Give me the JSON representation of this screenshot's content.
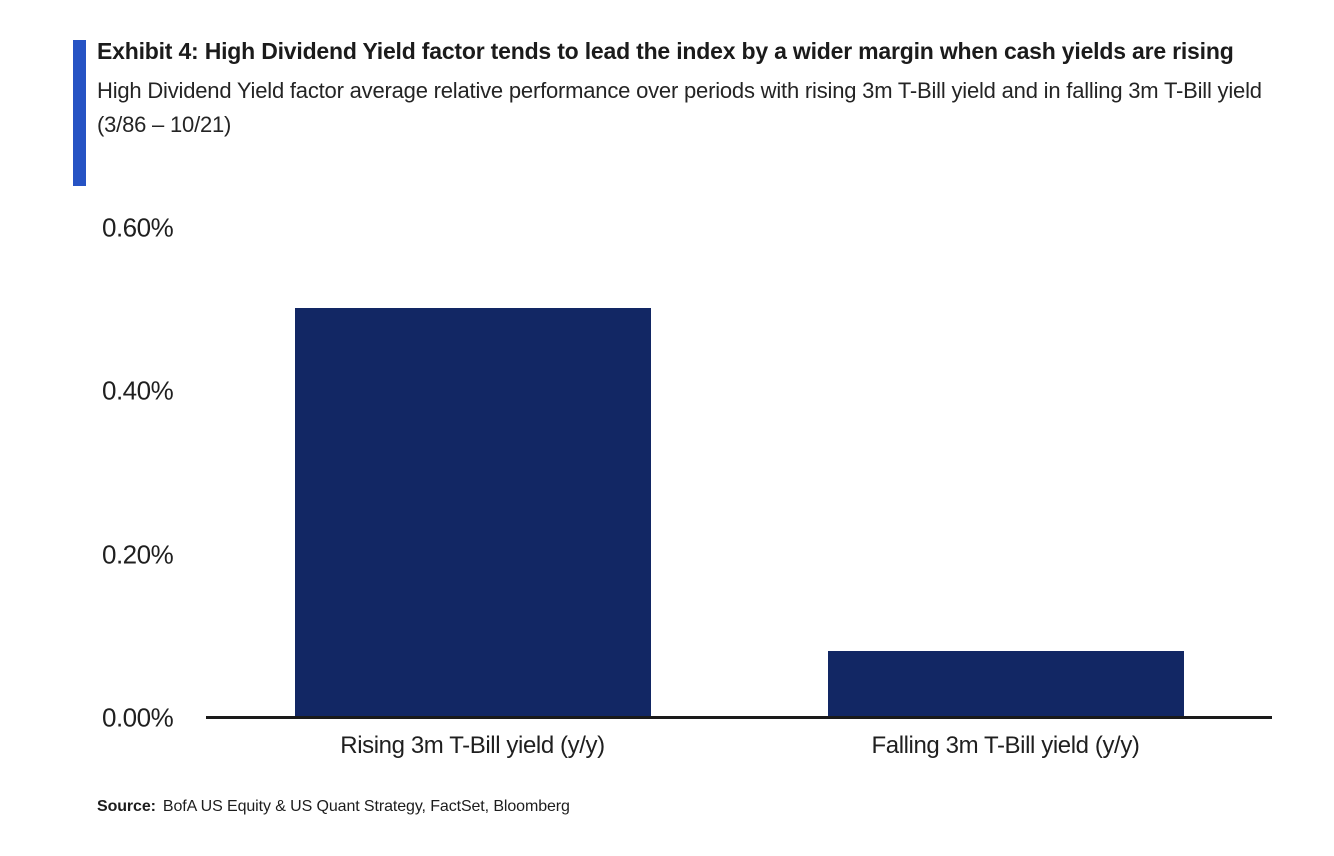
{
  "exhibit": {
    "title": "Exhibit 4: High Dividend Yield factor tends to lead the index by a wider margin when cash yields are rising",
    "subtitle": "High Dividend Yield factor average relative performance over periods with rising 3m T-Bill yield and in falling 3m T-Bill yield (3/86 – 10/21)"
  },
  "chart_data": {
    "type": "bar",
    "categories": [
      "Rising 3m T-Bill yield (y/y)",
      "Falling 3m T-Bill yield (y/y)"
    ],
    "values": [
      0.5,
      0.08
    ],
    "value_unit": "%",
    "title": "",
    "xlabel": "",
    "ylabel": "",
    "ylim": [
      0,
      0.6
    ],
    "ytick_labels": [
      "0.00%",
      "0.20%",
      "0.40%",
      "0.60%"
    ],
    "ytick_values": [
      0,
      0.2,
      0.4,
      0.6
    ],
    "grid": false,
    "legend": "none",
    "bar_color": "#122764",
    "axis_color": "#1a1a1a"
  },
  "source": {
    "label": "Source:",
    "text": "BofA US Equity & US Quant Strategy, FactSet, Bloomberg"
  },
  "colors": {
    "accent_bar": "#2653c4",
    "background": "#ffffff"
  }
}
